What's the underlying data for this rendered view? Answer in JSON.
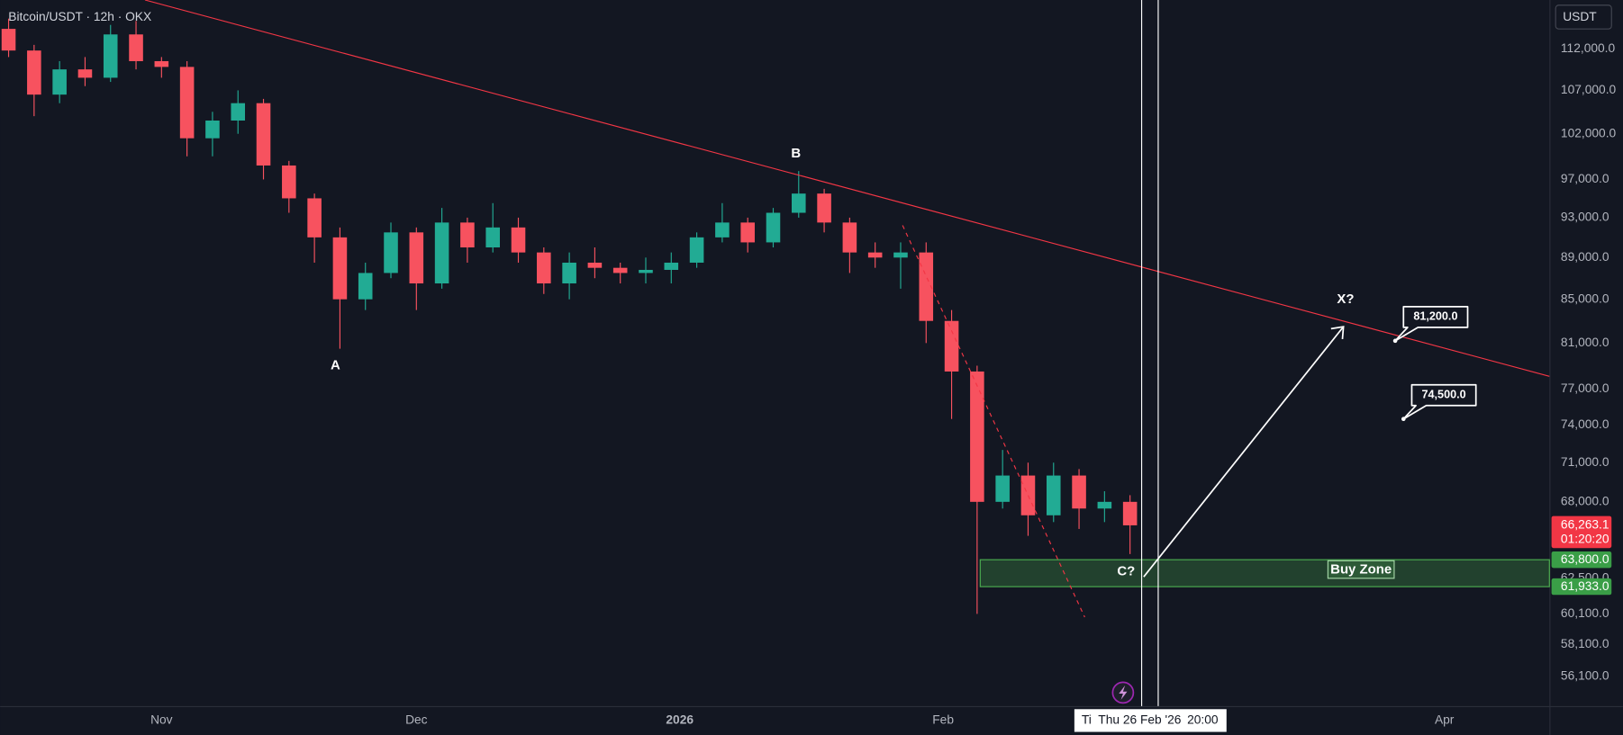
{
  "chart_data": {
    "type": "candlestick",
    "title": "Bitcoin/USDT · 12h · OKX",
    "currency": "USDT",
    "x": [
      "2025-10-14",
      "2025-10-17",
      "2025-10-20",
      "2025-10-23",
      "2025-10-26",
      "2025-10-29",
      "2025-11-01",
      "2025-11-04",
      "2025-11-07",
      "2025-11-10",
      "2025-11-13",
      "2025-11-16",
      "2025-11-19",
      "2025-11-22",
      "2025-11-25",
      "2025-11-28",
      "2025-12-01",
      "2025-12-04",
      "2025-12-07",
      "2025-12-10",
      "2025-12-13",
      "2025-12-16",
      "2025-12-19",
      "2025-12-22",
      "2025-12-25",
      "2025-12-28",
      "2025-12-31",
      "2026-01-03",
      "2026-01-06",
      "2026-01-09",
      "2026-01-12",
      "2026-01-15",
      "2026-01-18",
      "2026-01-21",
      "2026-01-24",
      "2026-01-27",
      "2026-01-30",
      "2026-02-02",
      "2026-02-05",
      "2026-02-08",
      "2026-02-11",
      "2026-02-14",
      "2026-02-17",
      "2026-02-20",
      "2026-02-23"
    ],
    "open": [
      114500,
      111800,
      106500,
      109500,
      108500,
      113800,
      110500,
      109800,
      101500,
      103500,
      105500,
      98500,
      95000,
      91000,
      85000,
      87500,
      91500,
      86500,
      92500,
      90000,
      92000,
      89500,
      86500,
      88500,
      88000,
      87500,
      87800,
      88500,
      91000,
      92500,
      90500,
      93500,
      95500,
      92500,
      89500,
      89000,
      89500,
      83000,
      78500,
      68000,
      70000,
      67000,
      70000,
      67500,
      68000
    ],
    "high": [
      115800,
      112500,
      110500,
      111000,
      115000,
      115500,
      111000,
      110500,
      104500,
      107000,
      106000,
      99000,
      95500,
      92000,
      88500,
      92500,
      92000,
      94000,
      93000,
      94500,
      93000,
      90000,
      89500,
      90000,
      88500,
      89000,
      89500,
      91500,
      94500,
      93000,
      94000,
      97900,
      96000,
      93000,
      90500,
      90500,
      90500,
      84000,
      79000,
      72000,
      71000,
      71000,
      70500,
      68800,
      68500
    ],
    "low": [
      111000,
      104000,
      105500,
      107500,
      108000,
      109500,
      108500,
      99500,
      99500,
      102000,
      97000,
      93500,
      88500,
      80500,
      84000,
      87000,
      84000,
      86000,
      88500,
      89500,
      88500,
      85500,
      85000,
      87000,
      86500,
      86500,
      86500,
      88000,
      90500,
      89500,
      90000,
      93000,
      91500,
      87500,
      88000,
      86000,
      81000,
      74500,
      60100,
      67500,
      65500,
      66500,
      66000,
      66500,
      64200
    ],
    "close": [
      111800,
      106500,
      109500,
      108500,
      113800,
      110500,
      109800,
      101500,
      103500,
      105500,
      98500,
      95000,
      91000,
      85000,
      87500,
      91500,
      86500,
      92500,
      90000,
      92000,
      89500,
      86500,
      88500,
      88000,
      87500,
      87800,
      88500,
      91000,
      92500,
      90500,
      93500,
      95500,
      92500,
      89500,
      89000,
      89500,
      83000,
      78500,
      68000,
      70000,
      67000,
      70000,
      67500,
      68000,
      66263.1
    ],
    "up_color": "#22ab94",
    "down_color": "#f7525f",
    "xlim": [
      "2025-10-13",
      "2026-04-13"
    ],
    "xticks": [
      {
        "value": "2025-11-01",
        "label": "Nov"
      },
      {
        "value": "2025-12-01",
        "label": "Dec"
      },
      {
        "value": "2026-01-01",
        "label": "2026"
      },
      {
        "value": "2026-02-01",
        "label": "Feb"
      },
      {
        "value": "2026-04-01",
        "label": "Apr"
      }
    ],
    "ylim": [
      54300,
      118200
    ],
    "log_scale": true,
    "grid": false,
    "yticks": [
      {
        "value": 112000,
        "label": "112,000.0"
      },
      {
        "value": 107000,
        "label": "107,000.0"
      },
      {
        "value": 102000,
        "label": "102,000.0"
      },
      {
        "value": 97000,
        "label": "97,000.0"
      },
      {
        "value": 93000,
        "label": "93,000.0"
      },
      {
        "value": 89000,
        "label": "89,000.0"
      },
      {
        "value": 85000,
        "label": "85,000.0"
      },
      {
        "value": 81000,
        "label": "81,000.0"
      },
      {
        "value": 77000,
        "label": "77,000.0"
      },
      {
        "value": 74000,
        "label": "74,000.0"
      },
      {
        "value": 71000,
        "label": "71,000.0"
      },
      {
        "value": 68000,
        "label": "68,000.0"
      },
      {
        "value": 62500,
        "label": "62,500.0"
      },
      {
        "value": 60100,
        "label": "60,100.0"
      },
      {
        "value": 58100,
        "label": "58,100.0"
      },
      {
        "value": 56100,
        "label": "56,100.0"
      }
    ],
    "last_price": {
      "value": 66263.1,
      "label": "66,263.1"
    },
    "countdown": "01:20:20",
    "buy_zone": {
      "label": "Buy Zone",
      "top": {
        "value": 63800,
        "label": "63,800.0"
      },
      "bottom": {
        "value": 61933,
        "label": "61,933.0"
      }
    },
    "callouts": [
      {
        "value": 81200,
        "label": "81,200.0"
      },
      {
        "value": 74500,
        "label": "74,500.0"
      }
    ],
    "annotations": [
      "A",
      "B",
      "C?",
      "X?"
    ],
    "crosshair": {
      "prefix": "Ti",
      "date": "Thu 26 Feb '26",
      "time": "20:00"
    }
  }
}
